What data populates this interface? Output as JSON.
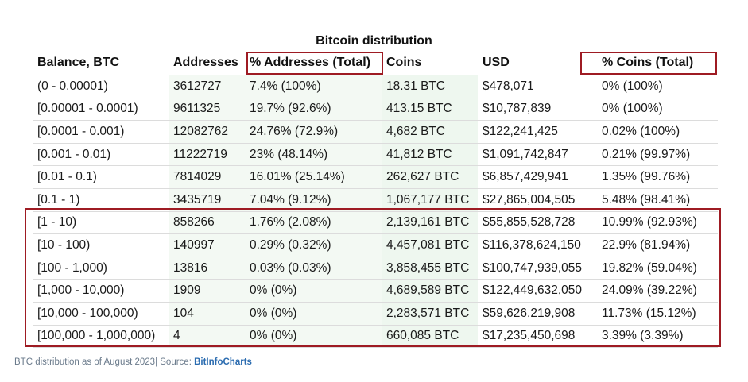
{
  "title": "Bitcoin distribution",
  "columns": [
    "Balance, BTC",
    "Addresses",
    "% Addresses (Total)",
    "Coins",
    "USD",
    "% Coins (Total)"
  ],
  "rows": [
    [
      "(0 - 0.00001)",
      "3612727",
      "7.4% (100%)",
      "18.31 BTC",
      "$478,071",
      "0% (100%)"
    ],
    [
      "[0.00001 - 0.0001)",
      "9611325",
      "19.7% (92.6%)",
      "413.15 BTC",
      "$10,787,839",
      "0% (100%)"
    ],
    [
      "[0.0001 - 0.001)",
      "12082762",
      "24.76% (72.9%)",
      "4,682 BTC",
      "$122,241,425",
      "0.02% (100%)"
    ],
    [
      "[0.001 - 0.01)",
      "11222719",
      "23% (48.14%)",
      "41,812 BTC",
      "$1,091,742,847",
      "0.21% (99.97%)"
    ],
    [
      "[0.01 - 0.1)",
      "7814029",
      "16.01% (25.14%)",
      "262,627 BTC",
      "$6,857,429,941",
      "1.35% (99.76%)"
    ],
    [
      "[0.1 - 1)",
      "3435719",
      "7.04% (9.12%)",
      "1,067,177 BTC",
      "$27,865,004,505",
      "5.48% (98.41%)"
    ],
    [
      "[1 - 10)",
      "858266",
      "1.76% (2.08%)",
      "2,139,161 BTC",
      "$55,855,528,728",
      "10.99% (92.93%)"
    ],
    [
      "[10 - 100)",
      "140997",
      "0.29% (0.32%)",
      "4,457,081 BTC",
      "$116,378,624,150",
      "22.9% (81.94%)"
    ],
    [
      "[100 - 1,000)",
      "13816",
      "0.03% (0.03%)",
      "3,858,455 BTC",
      "$100,747,939,055",
      "19.82% (59.04%)"
    ],
    [
      "[1,000 - 10,000)",
      "1909",
      "0% (0%)",
      "4,689,589 BTC",
      "$122,449,632,050",
      "24.09% (39.22%)"
    ],
    [
      "[10,000 - 100,000)",
      "104",
      "0% (0%)",
      "2,283,571 BTC",
      "$59,626,219,908",
      "11.73% (15.12%)"
    ],
    [
      "[100,000 - 1,000,000)",
      "4",
      "0% (0%)",
      "660,085 BTC",
      "$17,235,450,698",
      "3.39% (3.39%)"
    ]
  ],
  "caption": {
    "text": "BTC distribution as of August 2023| Source: ",
    "source": "BitInfoCharts"
  },
  "colors": {
    "highlight": "#9e1b23",
    "shade": "#f3f9f3",
    "link": "#2b6cb0"
  }
}
